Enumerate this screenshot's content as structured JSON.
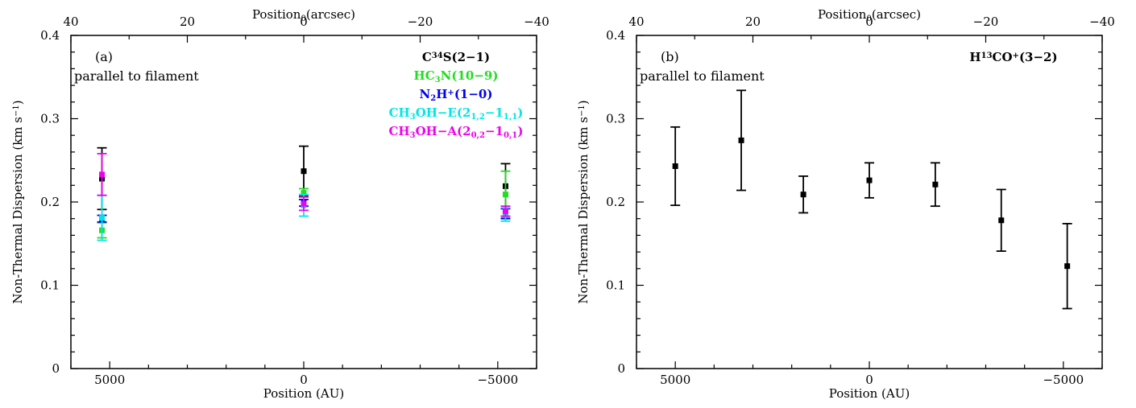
{
  "chart_data": [
    {
      "type": "scatter",
      "panel_label": "(a)",
      "annotation": "parallel to filament",
      "xlabel": "Position (AU)",
      "top_xlabel_parts": [
        "Position",
        "0",
        "(arcsec)"
      ],
      "ylabel": "Non-Thermal Dispersion (km s",
      "ylabel_sup": "−1",
      "ylabel_close": ")",
      "xlim": [
        6000,
        -6000
      ],
      "ylim": [
        0,
        0.4
      ],
      "top_xlim": [
        40,
        -40
      ],
      "x_ticks": [
        5000,
        0,
        -5000
      ],
      "x_tick_labels": [
        "5000",
        "0",
        "−5000"
      ],
      "top_ticks": [
        40,
        20,
        0,
        -20,
        -40
      ],
      "top_tick_labels": [
        "40",
        "20",
        "0",
        "−20",
        "−40"
      ],
      "y_ticks": [
        0,
        0.1,
        0.2,
        0.3,
        0.4
      ],
      "y_tick_labels": [
        "0",
        "0.1",
        "0.2",
        "0.3",
        "0.4"
      ],
      "series": [
        {
          "name": "C34S(2-1)",
          "color": "#000000",
          "legend": [
            [
              "C",
              ""
            ],
            [
              "34",
              "sup"
            ],
            [
              "S(2−1)",
              ""
            ]
          ],
          "points": [
            [
              5200,
              0.228,
              0.037
            ],
            [
              0,
              0.237,
              0.03
            ],
            [
              -5200,
              0.219,
              0.027
            ]
          ]
        },
        {
          "name": "HC3N(10-9)",
          "color": "#22dd22",
          "legend": [
            [
              "HC",
              ""
            ],
            [
              "3",
              "sub"
            ],
            [
              "N(10−9)",
              ""
            ]
          ],
          "points": [
            [
              5200,
              0.166,
              0.009
            ],
            [
              0,
              0.211,
              0.005
            ],
            [
              -5200,
              0.209,
              0.028
            ]
          ]
        },
        {
          "name": "N2H+(1-0)",
          "color": "#0000ee",
          "legend": [
            [
              "N",
              ""
            ],
            [
              "2",
              "sub"
            ],
            [
              "H",
              ""
            ],
            [
              "+",
              "sup"
            ],
            [
              "(1−0)",
              ""
            ]
          ],
          "points": [
            [
              5200,
              0.18,
              0.004
            ],
            [
              0,
              0.199,
              0.004
            ],
            [
              -5200,
              0.186,
              0.006
            ]
          ]
        },
        {
          "name": "CH3OH-E(2_1,2-1_1,1)",
          "color": "#00e5e5",
          "legend": [
            [
              "CH",
              ""
            ],
            [
              "3",
              "sub"
            ],
            [
              "OH−E(2",
              ""
            ],
            [
              "1,2",
              "sub"
            ],
            [
              "−1",
              ""
            ],
            [
              "1,1",
              "sub"
            ],
            [
              ")",
              ""
            ]
          ],
          "points": [
            [
              5200,
              0.181,
              0.027
            ],
            [
              0,
              0.196,
              0.013
            ],
            [
              -5200,
              0.185,
              0.008
            ]
          ]
        },
        {
          "name": "CH3OH-A(2_0,2-1_0,1)",
          "color": "#ee00ee",
          "legend": [
            [
              "CH",
              ""
            ],
            [
              "3",
              "sub"
            ],
            [
              "OH−A(2",
              ""
            ],
            [
              "0,2",
              "sub"
            ],
            [
              "−1",
              ""
            ],
            [
              "0,1",
              "sub"
            ],
            [
              ")",
              ""
            ]
          ],
          "points": [
            [
              5200,
              0.233,
              0.025
            ],
            [
              0,
              0.198,
              0.008
            ],
            [
              -5200,
              0.189,
              0.006
            ]
          ]
        }
      ]
    },
    {
      "type": "scatter",
      "panel_label": "(b)",
      "annotation": "parallel to filament",
      "xlabel": "Position (AU)",
      "top_xlabel_parts": [
        "Position",
        "0",
        "(arcsec)"
      ],
      "ylabel": "Non-Thermal Dispersion (km s",
      "ylabel_sup": "−1",
      "ylabel_close": ")",
      "xlim": [
        6000,
        -6000
      ],
      "ylim": [
        0,
        0.4
      ],
      "top_xlim": [
        40,
        -40
      ],
      "x_ticks": [
        5000,
        0,
        -5000
      ],
      "x_tick_labels": [
        "5000",
        "0",
        "−5000"
      ],
      "top_ticks": [
        40,
        20,
        0,
        -20,
        -40
      ],
      "top_tick_labels": [
        "40",
        "20",
        "0",
        "−20",
        "−40"
      ],
      "y_ticks": [
        0,
        0.1,
        0.2,
        0.3,
        0.4
      ],
      "y_tick_labels": [
        "0",
        "0.1",
        "0.2",
        "0.3",
        "0.4"
      ],
      "series": [
        {
          "name": "H13CO+(3-2)",
          "color": "#000000",
          "legend": [
            [
              "H",
              ""
            ],
            [
              "13",
              "sup"
            ],
            [
              "CO",
              ""
            ],
            [
              "+",
              "sup"
            ],
            [
              "(3−2)",
              ""
            ]
          ],
          "points": [
            [
              5000,
              0.243,
              0.047
            ],
            [
              3300,
              0.274,
              0.06
            ],
            [
              1700,
              0.209,
              0.022
            ],
            [
              0,
              0.226,
              0.021
            ],
            [
              -1700,
              0.221,
              0.026
            ],
            [
              -3400,
              0.178,
              0.037
            ],
            [
              -5100,
              0.123,
              0.051
            ]
          ]
        }
      ]
    }
  ]
}
